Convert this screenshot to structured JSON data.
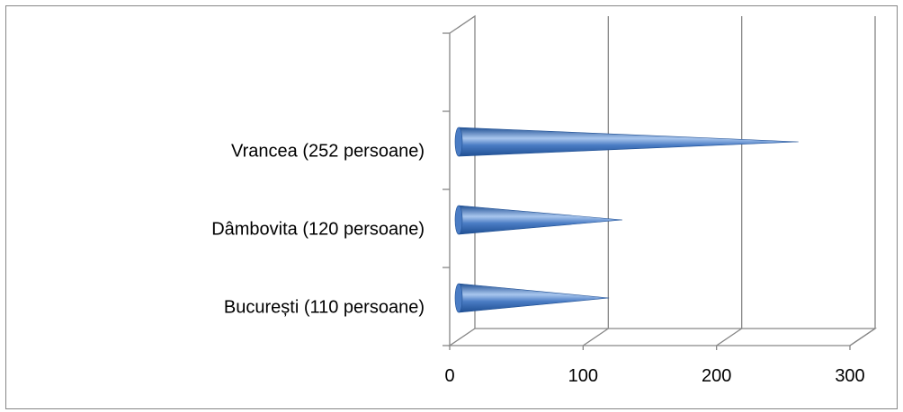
{
  "chart_data": {
    "type": "bar",
    "orientation": "horizontal",
    "shape": "cone",
    "style": "3d",
    "categories": [
      "București (110 persoane)",
      "Dâmbovita (120 persoane)",
      "Vrancea (252 persoane)"
    ],
    "values": [
      110,
      120,
      252
    ],
    "xlim": [
      0,
      300
    ],
    "x_ticks": [
      "0",
      "100",
      "200",
      "300"
    ],
    "category_slots": 4,
    "grid": true,
    "legend": "none",
    "colors": {
      "bar": "#4a7cc4",
      "bar_dark": "#1f4f93",
      "bar_light": "#a9c6ee",
      "grid": "#868686",
      "frame": "#868686"
    }
  }
}
